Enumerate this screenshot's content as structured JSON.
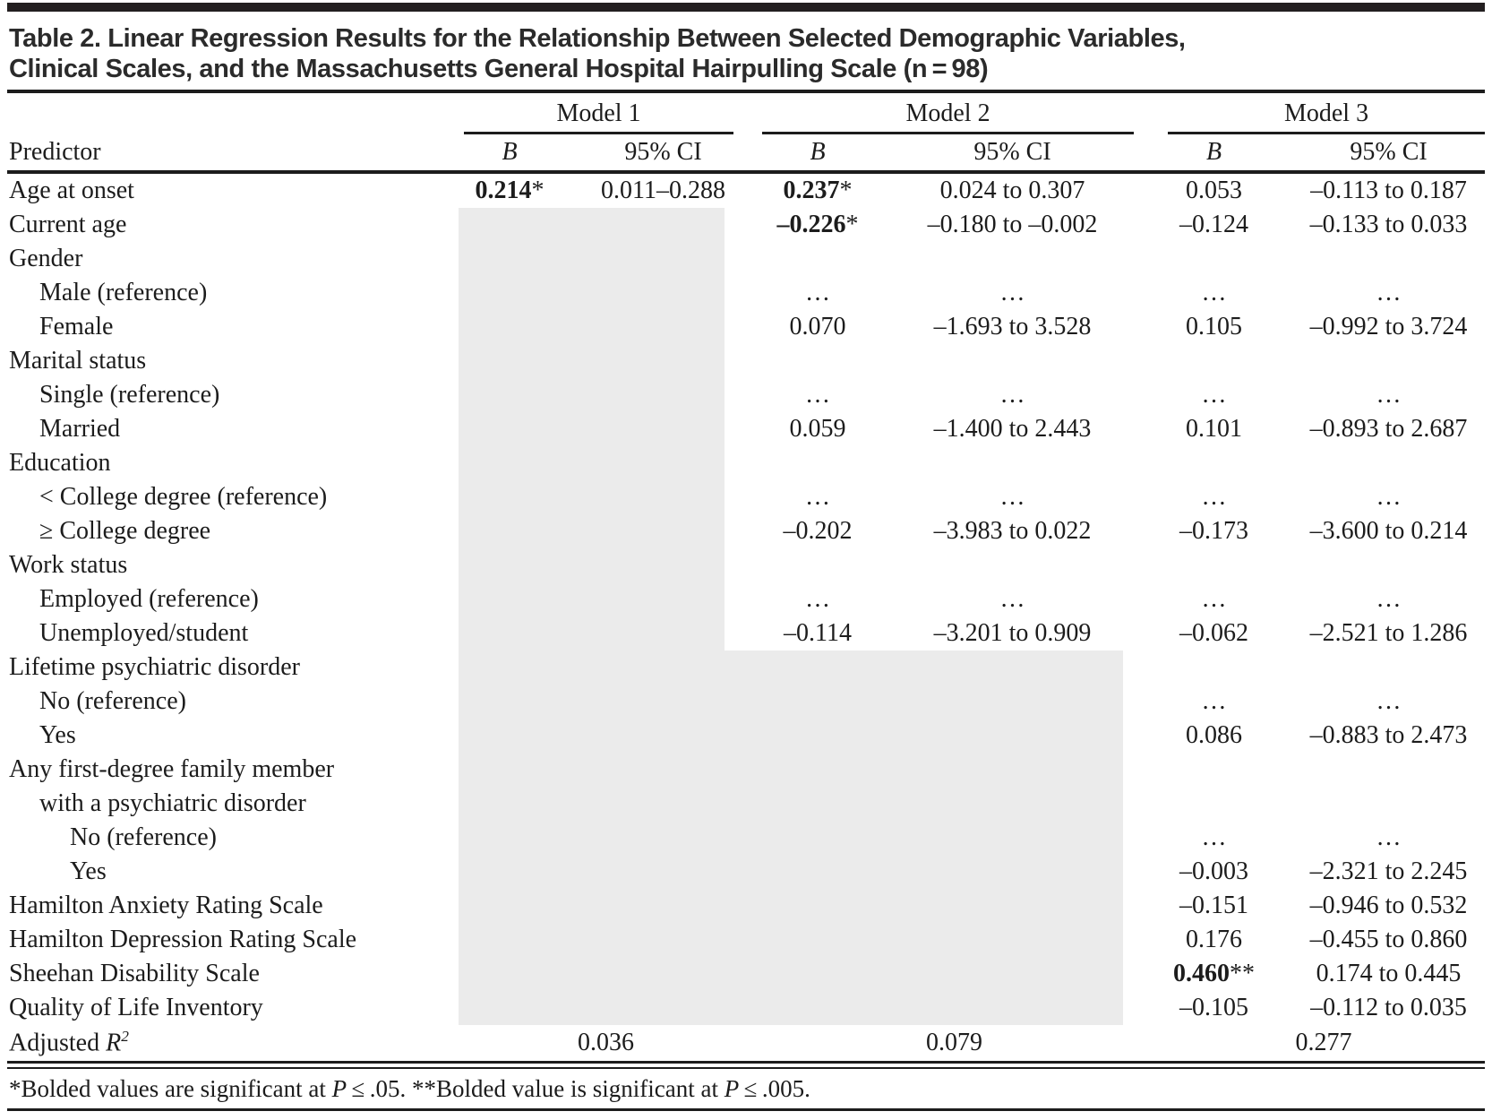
{
  "title": {
    "line1": "Table 2. Linear Regression Results for the Relationship Between Selected Demographic Variables,",
    "line2": "Clinical Scales, and the Massachusetts General Hospital Hairpulling Scale (n = 98)"
  },
  "header": {
    "predictor": "Predictor",
    "models": [
      "Model 1",
      "Model 2",
      "Model 3"
    ],
    "b_label": "B",
    "ci_label": "95% CI"
  },
  "rows": [
    {
      "label": "Age at onset",
      "indent": 0,
      "cells": {
        "m1b": {
          "text": "0.214",
          "mark": "*"
        },
        "m1ci": "0.011–0.288",
        "m2b": {
          "text": "0.237",
          "mark": "*"
        },
        "m2ci": "0.024 to 0.307",
        "m3b": "0.053",
        "m3ci": "–0.113 to 0.187"
      },
      "shade": []
    },
    {
      "label": "Current age",
      "indent": 0,
      "cells": {
        "m2b": {
          "text": "–0.226",
          "mark": "*"
        },
        "m2ci": "–0.180 to –0.002",
        "m3b": "–0.124",
        "m3ci": "–0.133 to 0.033"
      },
      "shade": [
        "m1"
      ]
    },
    {
      "label": "Gender",
      "indent": 0,
      "cells": {},
      "shade": [
        "m1"
      ]
    },
    {
      "label": "Male (reference)",
      "indent": 1,
      "cells": {
        "m2b": "…",
        "m2ci": "…",
        "m3b": "…",
        "m3ci": "…"
      },
      "shade": [
        "m1"
      ]
    },
    {
      "label": "Female",
      "indent": 1,
      "cells": {
        "m2b": "0.070",
        "m2ci": "–1.693 to 3.528",
        "m3b": "0.105",
        "m3ci": "–0.992 to 3.724"
      },
      "shade": [
        "m1"
      ]
    },
    {
      "label": "Marital status",
      "indent": 0,
      "cells": {},
      "shade": [
        "m1"
      ]
    },
    {
      "label": "Single (reference)",
      "indent": 1,
      "cells": {
        "m2b": "…",
        "m2ci": "…",
        "m3b": "…",
        "m3ci": "…"
      },
      "shade": [
        "m1"
      ]
    },
    {
      "label": "Married",
      "indent": 1,
      "cells": {
        "m2b": "0.059",
        "m2ci": "–1.400 to 2.443",
        "m3b": "0.101",
        "m3ci": "–0.893 to 2.687"
      },
      "shade": [
        "m1"
      ]
    },
    {
      "label": "Education",
      "indent": 0,
      "cells": {},
      "shade": [
        "m1"
      ]
    },
    {
      "label": "< College degree (reference)",
      "indent": 1,
      "cells": {
        "m2b": "…",
        "m2ci": "…",
        "m3b": "…",
        "m3ci": "…"
      },
      "shade": [
        "m1"
      ]
    },
    {
      "label": "≥ College degree",
      "indent": 1,
      "cells": {
        "m2b": "–0.202",
        "m2ci": "–3.983 to 0.022",
        "m3b": "–0.173",
        "m3ci": "–3.600 to 0.214"
      },
      "shade": [
        "m1"
      ]
    },
    {
      "label": "Work status",
      "indent": 0,
      "cells": {},
      "shade": [
        "m1"
      ]
    },
    {
      "label": "Employed (reference)",
      "indent": 1,
      "cells": {
        "m2b": "…",
        "m2ci": "…",
        "m3b": "…",
        "m3ci": "…"
      },
      "shade": [
        "m1"
      ]
    },
    {
      "label": "Unemployed/student",
      "indent": 1,
      "cells": {
        "m2b": "–0.114",
        "m2ci": "–3.201 to 0.909",
        "m3b": "–0.062",
        "m3ci": "–2.521 to 1.286"
      },
      "shade": [
        "m1"
      ]
    },
    {
      "label": "Lifetime psychiatric disorder",
      "indent": 0,
      "cells": {},
      "shade": [
        "m1",
        "m2"
      ]
    },
    {
      "label": "No (reference)",
      "indent": 1,
      "cells": {
        "m3b": "…",
        "m3ci": "…"
      },
      "shade": [
        "m1",
        "m2"
      ]
    },
    {
      "label": "Yes",
      "indent": 1,
      "cells": {
        "m3b": "0.086",
        "m3ci": "–0.883 to 2.473"
      },
      "shade": [
        "m1",
        "m2"
      ]
    },
    {
      "label": "Any first-degree family member",
      "indent": 0,
      "cells": {},
      "shade": [
        "m1",
        "m2"
      ]
    },
    {
      "label": "with a psychiatric disorder",
      "indent": 1,
      "cells": {},
      "shade": [
        "m1",
        "m2"
      ]
    },
    {
      "label": "No (reference)",
      "indent": 2,
      "cells": {
        "m3b": "…",
        "m3ci": "…"
      },
      "shade": [
        "m1",
        "m2"
      ]
    },
    {
      "label": "Yes",
      "indent": 2,
      "cells": {
        "m3b": "–0.003",
        "m3ci": "–2.321 to 2.245"
      },
      "shade": [
        "m1",
        "m2"
      ]
    },
    {
      "label": "Hamilton Anxiety Rating Scale",
      "indent": 0,
      "cells": {
        "m3b": "–0.151",
        "m3ci": "–0.946 to 0.532"
      },
      "shade": [
        "m1",
        "m2"
      ]
    },
    {
      "label": "Hamilton Depression Rating Scale",
      "indent": 0,
      "cells": {
        "m3b": "0.176",
        "m3ci": "–0.455 to 0.860"
      },
      "shade": [
        "m1",
        "m2"
      ]
    },
    {
      "label": "Sheehan Disability Scale",
      "indent": 0,
      "cells": {
        "m3b": {
          "text": "0.460",
          "mark": "**"
        },
        "m3ci": "0.174 to 0.445"
      },
      "shade": [
        "m1",
        "m2"
      ]
    },
    {
      "label": "Quality of Life Inventory",
      "indent": 0,
      "cells": {
        "m3b": "–0.105",
        "m3ci": "–0.112 to 0.035"
      },
      "shade": [
        "m1",
        "m2"
      ]
    }
  ],
  "adjusted_r2": {
    "label": "Adjusted",
    "symbol": "R",
    "exponent": "2",
    "m1": "0.036",
    "m2": "0.079",
    "m3": "0.277"
  },
  "footnote": {
    "segments": [
      {
        "t": "*Bolded values are significant at "
      },
      {
        "t": "P",
        "italic": true
      },
      {
        "t": " ≤ .05. **Bolded value is significant at "
      },
      {
        "t": "P",
        "italic": true
      },
      {
        "t": " ≤ .005."
      }
    ]
  },
  "colors": {
    "shade_bg": "#ebebeb",
    "rule": "#1c1c1c",
    "title_text": "#2b2b2b"
  }
}
